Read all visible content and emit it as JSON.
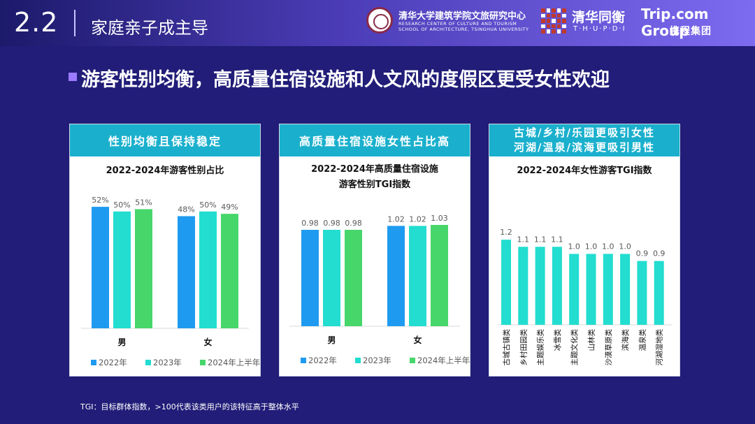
{
  "header": {
    "section_number": "2.2",
    "section_title": "家庭亲子成主导",
    "logo1": {
      "name": "清华大学建筑学院文旅研究中心",
      "sub1": "RESEARCH CENTER OF CULTURE AND TOURISM",
      "sub2": "SCHOOL OF ARCHITECTURE, TSINGHUA UNIVERSITY"
    },
    "logo2": {
      "name": "清华同衡",
      "abbr": "T·H·U·P·D·I"
    },
    "logo3": {
      "name": "Trip.com Group",
      "cn": "携程集团"
    }
  },
  "headline": "游客性别均衡，高质量住宿设施和人文风的度假区更受女性欢迎",
  "panels": [
    {
      "header": "性别均衡且保持稳定",
      "title_line1": "2022-2024年游客性别占比",
      "title_line2": ""
    },
    {
      "header": "高质量住宿设施女性占比高",
      "title_line1": "2022-2024年高质量住宿设施",
      "title_line2": "游客性别TGI指数"
    },
    {
      "header_line1": "古城/乡村/乐园更吸引女性",
      "header_line2": "河湖/温泉/滨海更吸引男性",
      "title_line1": "2022-2024年女性游客TGI指数",
      "title_line2": ""
    }
  ],
  "footnote": "TGI：目标群体指数，>100代表该类用户的该特征高于整体水平",
  "colors": {
    "2022": "#1e9bf0",
    "2023": "#22ddd0",
    "2024": "#47d66a",
    "header_bg": "#1ab0cd",
    "page_bg": "#211d78"
  },
  "chart_data": [
    {
      "type": "bar",
      "title": "2022-2024年游客性别占比",
      "categories": [
        "男",
        "女"
      ],
      "series": [
        {
          "name": "2022年",
          "values": [
            52,
            48
          ],
          "labels": [
            "52%",
            "48%"
          ]
        },
        {
          "name": "2023年",
          "values": [
            50,
            50
          ],
          "labels": [
            "50%",
            "50%"
          ]
        },
        {
          "name": "2024年上半年",
          "values": [
            51,
            49
          ],
          "labels": [
            "51%",
            "49%"
          ]
        }
      ],
      "ylim": [
        0,
        58
      ],
      "legend": "bottom",
      "grid": false
    },
    {
      "type": "bar",
      "title": "2022-2024年高质量住宿设施游客性别TGI指数",
      "categories": [
        "男",
        "女"
      ],
      "series": [
        {
          "name": "2022年",
          "values": [
            0.98,
            1.02
          ],
          "labels": [
            "0.98",
            "1.02"
          ]
        },
        {
          "name": "2023年",
          "values": [
            0.98,
            1.02
          ],
          "labels": [
            "0.98",
            "1.02"
          ]
        },
        {
          "name": "2024年上半年",
          "values": [
            0.98,
            1.03
          ],
          "labels": [
            "0.98",
            "1.03"
          ]
        }
      ],
      "ylim": [
        0,
        1.25
      ],
      "legend": "bottom",
      "grid": false
    },
    {
      "type": "bar",
      "title": "2022-2024年女性游客TGI指数",
      "categories": [
        "古城古镇类",
        "乡村田园类",
        "主题娱乐类",
        "冰雪类",
        "主题文化类",
        "山林类",
        "沙漠草原类",
        "滨海类",
        "温泉类",
        "河湖湿地类"
      ],
      "values": [
        1.2,
        1.1,
        1.1,
        1.1,
        1.0,
        1.0,
        1.0,
        1.0,
        0.9,
        0.9
      ],
      "labels": [
        "1.2",
        "1.1",
        "1.1",
        "1.1",
        "1.0",
        "1.0",
        "1.0",
        "1.0",
        "0.9",
        "0.9"
      ],
      "ylim": [
        0,
        1.3
      ],
      "grid": false
    }
  ]
}
